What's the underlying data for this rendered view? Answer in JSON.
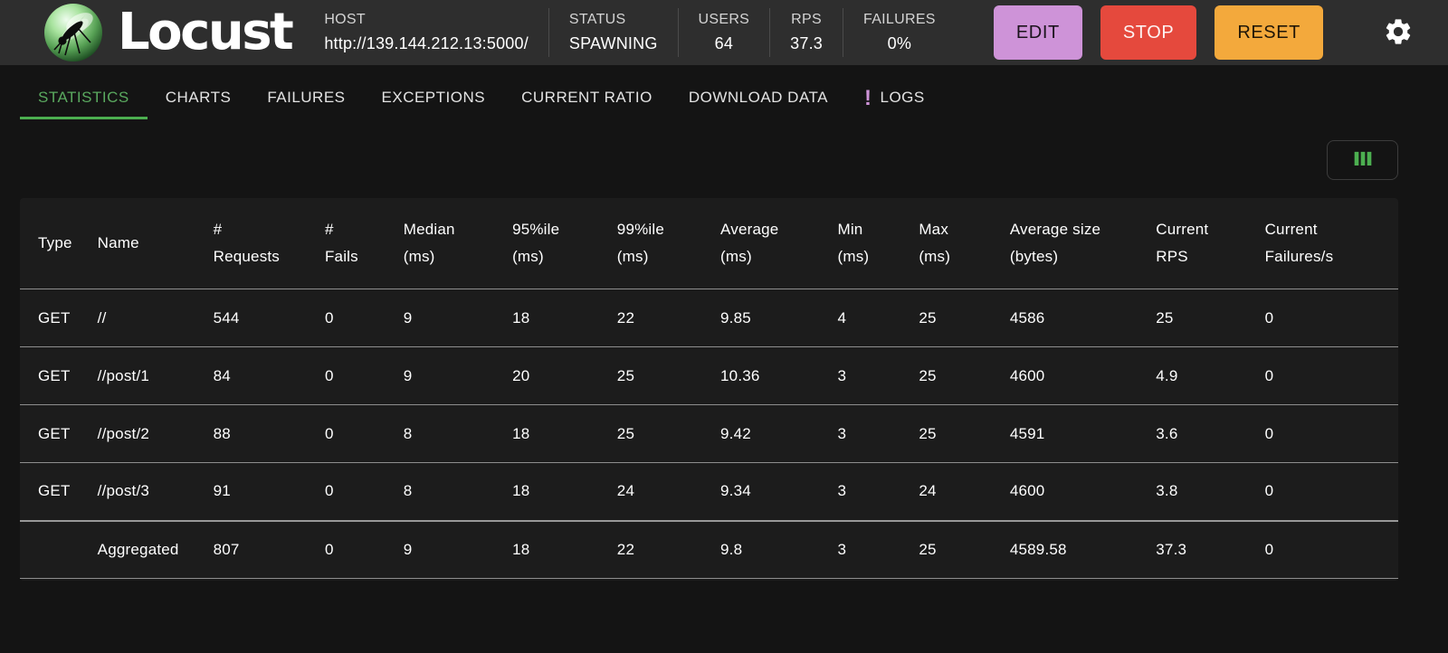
{
  "header": {
    "title": "Locust",
    "logo_icon": "locust-logo",
    "host": {
      "label": "HOST",
      "value": "http://139.144.212.13:5000/"
    },
    "stats": [
      {
        "label": "STATUS",
        "value": "SPAWNING"
      },
      {
        "label": "USERS",
        "value": "64"
      },
      {
        "label": "RPS",
        "value": "37.3"
      },
      {
        "label": "FAILURES",
        "value": "0%"
      }
    ],
    "buttons": {
      "edit": "EDIT",
      "stop": "STOP",
      "reset": "RESET"
    },
    "settings_icon": "gear-icon"
  },
  "tabs": [
    {
      "label": "STATISTICS",
      "active": true
    },
    {
      "label": "CHARTS",
      "active": false
    },
    {
      "label": "FAILURES",
      "active": false
    },
    {
      "label": "EXCEPTIONS",
      "active": false
    },
    {
      "label": "CURRENT RATIO",
      "active": false
    },
    {
      "label": "DOWNLOAD DATA",
      "active": false
    },
    {
      "label": "LOGS",
      "active": false,
      "badge": "!"
    }
  ],
  "toolbar": {
    "column_selector_icon": "view-columns-icon"
  },
  "table": {
    "columns": [
      "Type",
      "Name",
      "#\nRequests",
      "#\nFails",
      "Median\n(ms)",
      "95%ile\n(ms)",
      "99%ile\n(ms)",
      "Average\n(ms)",
      "Min\n(ms)",
      "Max\n(ms)",
      "Average size\n(bytes)",
      "Current\nRPS",
      "Current\nFailures/s"
    ],
    "rows": [
      {
        "cells": [
          "GET",
          "//",
          "544",
          "0",
          "9",
          "18",
          "22",
          "9.85",
          "4",
          "25",
          "4586",
          "25",
          "0"
        ],
        "is_aggregate": false
      },
      {
        "cells": [
          "GET",
          "//post/1",
          "84",
          "0",
          "9",
          "20",
          "25",
          "10.36",
          "3",
          "25",
          "4600",
          "4.9",
          "0"
        ],
        "is_aggregate": false
      },
      {
        "cells": [
          "GET",
          "//post/2",
          "88",
          "0",
          "8",
          "18",
          "25",
          "9.42",
          "3",
          "25",
          "4591",
          "3.6",
          "0"
        ],
        "is_aggregate": false
      },
      {
        "cells": [
          "GET",
          "//post/3",
          "91",
          "0",
          "8",
          "18",
          "24",
          "9.34",
          "3",
          "24",
          "4600",
          "3.8",
          "0"
        ],
        "is_aggregate": false
      },
      {
        "cells": [
          "",
          "Aggregated",
          "807",
          "0",
          "9",
          "18",
          "22",
          "9.8",
          "3",
          "25",
          "4589.58",
          "37.3",
          "0"
        ],
        "is_aggregate": true
      }
    ]
  },
  "colors": {
    "header_bg": "#2e2e2e",
    "page_bg": "#141414",
    "card_bg": "#1c1c1c",
    "accent_green": "#4caf50",
    "tab_active_green": "#5aa95f",
    "edit_purple": "#ce93d8",
    "stop_red": "#e5493d",
    "reset_orange": "#f3a93c",
    "logs_badge_purple": "#ce93d8"
  }
}
